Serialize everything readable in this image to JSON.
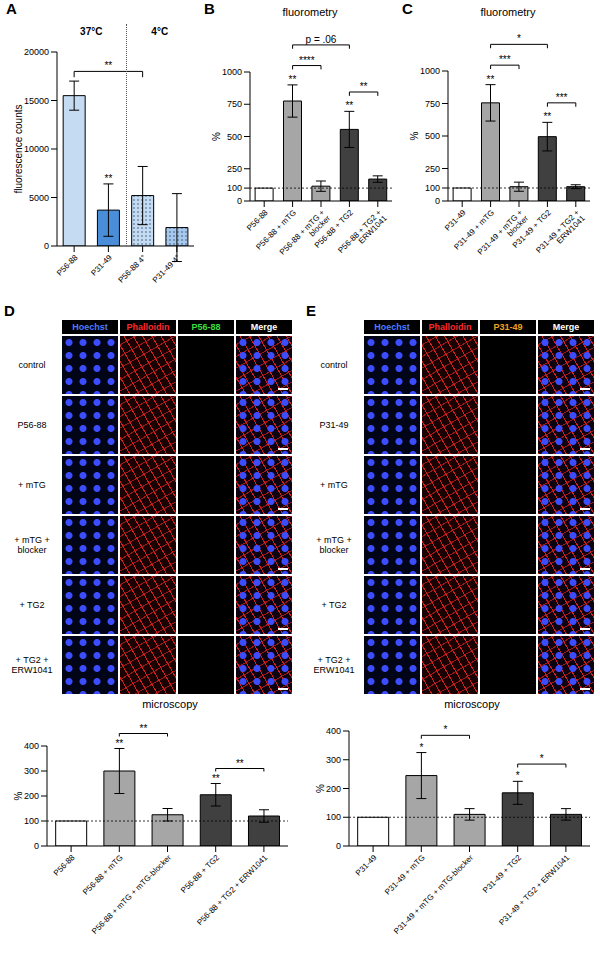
{
  "chart_data": [
    {
      "panel": "A",
      "type": "bar",
      "categories": [
        "P56-88",
        "P31-49",
        "P56-88 4°",
        "P31-49 4°"
      ],
      "values": [
        15500,
        3700,
        5200,
        1900
      ],
      "errors": [
        1500,
        2700,
        3000,
        3500
      ],
      "colors": [
        "#c5dbf1",
        "#4a8dd8",
        "#c5dbf1",
        "#a9c9ec"
      ],
      "groups": [
        {
          "label": "37°C",
          "from": 0,
          "to": 1
        },
        {
          "label": "4°C",
          "from": 2,
          "to": 3
        }
      ],
      "ylabel": "fluorescence counts",
      "ylim": [
        0,
        20000
      ],
      "yticks": [
        0,
        5000,
        10000,
        15000,
        20000
      ],
      "stars": [
        null,
        "**",
        null,
        null
      ],
      "brackets": [
        {
          "from": 0,
          "to": 2,
          "text": "**"
        }
      ]
    },
    {
      "panel": "B",
      "type": "bar",
      "title": "fluorometry",
      "categories": [
        "P56-88",
        "P56-88 + mTG",
        "P56-88 + mTG + blocker",
        "P56-88 + TG2",
        "P56-88 + TG2 + ERW1041"
      ],
      "values": [
        100,
        775,
        115,
        555,
        170
      ],
      "errors": [
        0,
        125,
        40,
        140,
        25
      ],
      "colors": [
        "#ffffff",
        "#a6a6a6",
        "#a6a6a6",
        "#404040",
        "#404040"
      ],
      "ylabel": "%",
      "ylim": [
        0,
        1000
      ],
      "yticks": [
        0,
        100,
        250,
        500,
        750,
        1000
      ],
      "reference": 100,
      "stars": [
        null,
        "**",
        null,
        "**",
        null
      ],
      "brackets": [
        {
          "from": 1,
          "to": 2,
          "text": "****"
        },
        {
          "from": 3,
          "to": 4,
          "text": "**"
        },
        {
          "from": 1,
          "to": 3,
          "text": "p = .06"
        }
      ]
    },
    {
      "panel": "C",
      "type": "bar",
      "title": "fluorometry",
      "categories": [
        "P31-49",
        "P31-49 + mTG",
        "P31-49 + mTG + blocker",
        "P31-49 + TG2",
        "P31-49 + TG2 + ERW1041"
      ],
      "values": [
        100,
        755,
        110,
        495,
        110
      ],
      "errors": [
        0,
        140,
        35,
        110,
        15
      ],
      "colors": [
        "#ffffff",
        "#a6a6a6",
        "#a6a6a6",
        "#404040",
        "#404040"
      ],
      "ylabel": "%",
      "ylim": [
        0,
        1000
      ],
      "yticks": [
        0,
        100,
        250,
        500,
        750,
        1000
      ],
      "reference": 100,
      "stars": [
        null,
        "**",
        null,
        "**",
        null
      ],
      "brackets": [
        {
          "from": 1,
          "to": 2,
          "text": "***"
        },
        {
          "from": 3,
          "to": 4,
          "text": "***"
        },
        {
          "from": 1,
          "to": 3,
          "text": "*"
        }
      ]
    },
    {
      "type": "bar",
      "title": "microscopy",
      "categories": [
        "P56-88",
        "P56-88 + mTG",
        "P56-88 + mTG + mTG-blocker",
        "P56-88 + TG2",
        "P56-88 + TG2 + ERW1041"
      ],
      "values": [
        100,
        300,
        125,
        205,
        120
      ],
      "errors": [
        0,
        90,
        25,
        45,
        25
      ],
      "colors": [
        "#ffffff",
        "#a6a6a6",
        "#a6a6a6",
        "#404040",
        "#404040"
      ],
      "ylabel": "%",
      "ylim": [
        0,
        400
      ],
      "yticks": [
        0,
        100,
        200,
        300,
        400
      ],
      "reference": 100,
      "stars": [
        null,
        "**",
        null,
        "**",
        null
      ],
      "brackets": [
        {
          "from": 1,
          "to": 2,
          "text": "**"
        },
        {
          "from": 3,
          "to": 4,
          "text": "**"
        }
      ]
    },
    {
      "type": "bar",
      "title": "microscopy",
      "categories": [
        "P31-49",
        "P31-49 + mTG",
        "P31-49 + mTG + mTG-blocker",
        "P31-49 + TG2",
        "P31-49 + TG2 + ERW1041"
      ],
      "values": [
        100,
        245,
        110,
        185,
        110
      ],
      "errors": [
        0,
        80,
        20,
        40,
        20
      ],
      "colors": [
        "#ffffff",
        "#a6a6a6",
        "#a6a6a6",
        "#404040",
        "#404040"
      ],
      "ylabel": "%",
      "ylim": [
        0,
        400
      ],
      "yticks": [
        0,
        100,
        200,
        300,
        400
      ],
      "reference": 100,
      "stars": [
        null,
        "*",
        null,
        "*",
        null
      ],
      "brackets": [
        {
          "from": 1,
          "to": 2,
          "text": "*"
        },
        {
          "from": 3,
          "to": 4,
          "text": "*"
        }
      ]
    }
  ],
  "micrographs": [
    {
      "panel": "D",
      "columns": [
        {
          "label": "Hoechst",
          "color": "#4a7dff"
        },
        {
          "label": "Phalloidin",
          "color": "#ff2a2a"
        },
        {
          "label": "P56-88",
          "color": "#3ddc3d"
        },
        {
          "label": "Merge",
          "color": "#ffffff"
        }
      ],
      "rows": [
        "control",
        "P56-88",
        "+ mTG",
        "+ mTG + blocker",
        "+ TG2",
        "+ TG2 + ERW1041"
      ]
    },
    {
      "panel": "E",
      "columns": [
        {
          "label": "Hoechst",
          "color": "#4a7dff"
        },
        {
          "label": "Phalloidin",
          "color": "#ff2a2a"
        },
        {
          "label": "P31-49",
          "color": "#f0a020"
        },
        {
          "label": "Merge",
          "color": "#ffffff"
        }
      ],
      "rows": [
        "control",
        "P31-49",
        "+ mTG",
        "+ mTG + blocker",
        "+ TG2",
        "+ TG2 + ERW1041"
      ]
    }
  ]
}
